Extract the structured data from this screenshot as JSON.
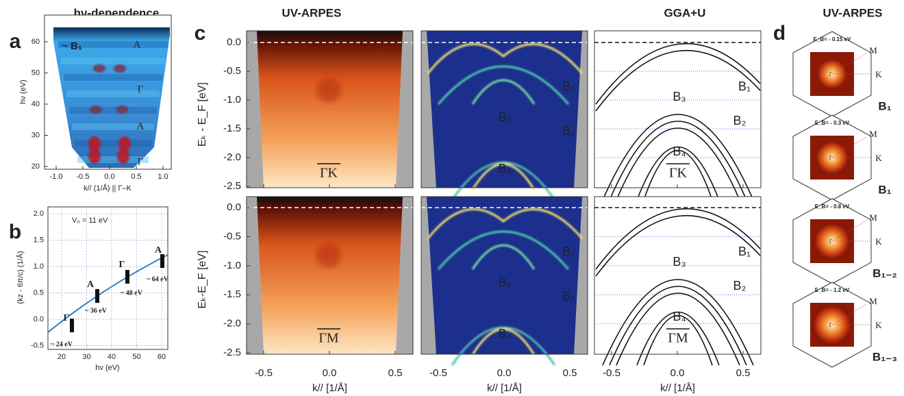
{
  "panel_a": {
    "letter": "a",
    "title": "hν-dependence",
    "y_label": "hν (eV)",
    "x_label": "k// (1/Å) || Γ–K",
    "yticks": [
      "20",
      "30",
      "40",
      "50",
      "60"
    ],
    "xticks": [
      "-1.0",
      "-0.5",
      "0.0",
      "0.5",
      "1.0"
    ],
    "annotations": [
      "~ B₁",
      "A",
      "Γ",
      "A",
      "Γ"
    ]
  },
  "panel_b": {
    "letter": "b",
    "y_label": "(kz - 6π/c) (1/Å)",
    "x_label": "hν (eV)",
    "yticks": [
      "2.0",
      "1.5",
      "1.0",
      "0.5",
      "0.0",
      "-0.5"
    ],
    "xticks": [
      "20",
      "30",
      "40",
      "50",
      "60"
    ],
    "annotations": [
      "V₀ =  11 eV",
      "Γ",
      "A",
      "Γ",
      "A",
      "~ 24 eV",
      "~ 36 eV",
      "~ 48 eV",
      "~ 64 eV"
    ]
  },
  "panel_c": {
    "letter": "c",
    "titles": [
      "UV-ARPES",
      "GGA+U"
    ],
    "y_labels": [
      "Eₖ - E_F [eV]",
      "Eₖ-E_F [eV]"
    ],
    "yticks": [
      "0.0",
      "-0.5",
      "-1.0",
      "-1.5",
      "-2.0",
      "-2.5"
    ],
    "xticks": [
      "-0.5",
      "0.0",
      "0.5"
    ],
    "x_label": "k// [1/Å]",
    "directions": [
      "ΓK",
      "ΓM"
    ],
    "bands": [
      "B₁",
      "B₂",
      "B₃",
      "B₄"
    ]
  },
  "panel_d": {
    "letter": "d",
    "title": "UV-ARPES",
    "points": [
      "M",
      "K",
      "Γ"
    ],
    "maps": [
      {
        "energy": "E_B= - 0.15 eV",
        "label": "B₁"
      },
      {
        "energy": "E_B= - 0.3 eV",
        "label": "B₁"
      },
      {
        "energy": "E_B= - 0.8 eV",
        "label": "B₁₋₂"
      },
      {
        "energy": "E_B= - 1.2 eV",
        "label": "B₁₋₃"
      }
    ]
  }
}
